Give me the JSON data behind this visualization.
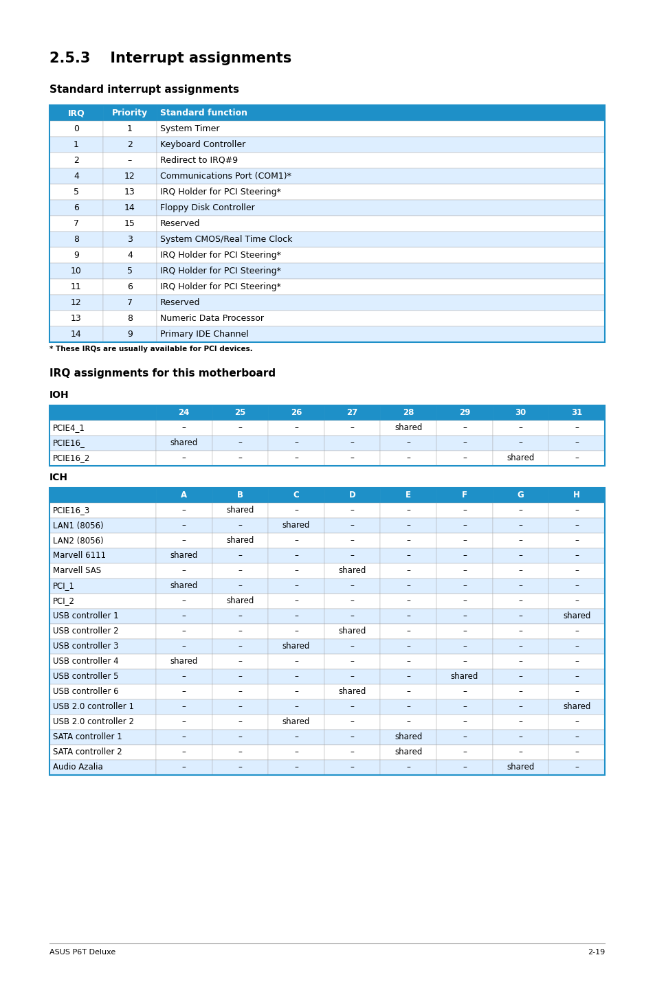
{
  "title_section": "2.5.3    Interrupt assignments",
  "subtitle1": "Standard interrupt assignments",
  "table1_header": [
    "IRQ",
    "Priority",
    "Standard function"
  ],
  "table1_rows": [
    [
      "0",
      "1",
      "System Timer"
    ],
    [
      "1",
      "2",
      "Keyboard Controller"
    ],
    [
      "2",
      "–",
      "Redirect to IRQ#9"
    ],
    [
      "4",
      "12",
      "Communications Port (COM1)*"
    ],
    [
      "5",
      "13",
      "IRQ Holder for PCI Steering*"
    ],
    [
      "6",
      "14",
      "Floppy Disk Controller"
    ],
    [
      "7",
      "15",
      "Reserved"
    ],
    [
      "8",
      "3",
      "System CMOS/Real Time Clock"
    ],
    [
      "9",
      "4",
      "IRQ Holder for PCI Steering*"
    ],
    [
      "10",
      "5",
      "IRQ Holder for PCI Steering*"
    ],
    [
      "11",
      "6",
      "IRQ Holder for PCI Steering*"
    ],
    [
      "12",
      "7",
      "Reserved"
    ],
    [
      "13",
      "8",
      "Numeric Data Processor"
    ],
    [
      "14",
      "9",
      "Primary IDE Channel"
    ]
  ],
  "table1_footnote": "* These IRQs are usually available for PCI devices.",
  "subtitle2": "IRQ assignments for this motherboard",
  "ioh_label": "IOH",
  "ioh_header": [
    "",
    "24",
    "25",
    "26",
    "27",
    "28",
    "29",
    "30",
    "31"
  ],
  "ioh_rows": [
    [
      "PCIE4_1",
      "–",
      "–",
      "–",
      "–",
      "shared",
      "–",
      "–",
      "–"
    ],
    [
      "PCIE16_",
      "shared",
      "–",
      "–",
      "–",
      "–",
      "–",
      "–",
      "–"
    ],
    [
      "PCIE16_2",
      "–",
      "–",
      "–",
      "–",
      "–",
      "–",
      "shared",
      "–"
    ]
  ],
  "ich_label": "ICH",
  "ich_header": [
    "",
    "A",
    "B",
    "C",
    "D",
    "E",
    "F",
    "G",
    "H"
  ],
  "ich_rows": [
    [
      "PCIE16_3",
      "–",
      "shared",
      "–",
      "–",
      "–",
      "–",
      "–",
      "–"
    ],
    [
      "LAN1 (8056)",
      "–",
      "–",
      "shared",
      "–",
      "–",
      "–",
      "–",
      "–"
    ],
    [
      "LAN2 (8056)",
      "–",
      "shared",
      "–",
      "–",
      "–",
      "–",
      "–",
      "–"
    ],
    [
      "Marvell 6111",
      "shared",
      "–",
      "–",
      "–",
      "–",
      "–",
      "–",
      "–"
    ],
    [
      "Marvell SAS",
      "–",
      "–",
      "–",
      "shared",
      "–",
      "–",
      "–",
      "–"
    ],
    [
      "PCI_1",
      "shared",
      "–",
      "–",
      "–",
      "–",
      "–",
      "–",
      "–"
    ],
    [
      "PCI_2",
      "–",
      "shared",
      "–",
      "–",
      "–",
      "–",
      "–",
      "–"
    ],
    [
      "USB controller 1",
      "–",
      "–",
      "–",
      "–",
      "–",
      "–",
      "–",
      "shared"
    ],
    [
      "USB controller 2",
      "–",
      "–",
      "–",
      "shared",
      "–",
      "–",
      "–",
      "–"
    ],
    [
      "USB controller 3",
      "–",
      "–",
      "shared",
      "–",
      "–",
      "–",
      "–",
      "–"
    ],
    [
      "USB controller 4",
      "shared",
      "–",
      "–",
      "–",
      "–",
      "–",
      "–",
      "–"
    ],
    [
      "USB controller 5",
      "–",
      "–",
      "–",
      "–",
      "–",
      "shared",
      "–",
      "–"
    ],
    [
      "USB controller 6",
      "–",
      "–",
      "–",
      "shared",
      "–",
      "–",
      "–",
      "–"
    ],
    [
      "USB 2.0 controller 1",
      "–",
      "–",
      "–",
      "–",
      "–",
      "–",
      "–",
      "shared"
    ],
    [
      "USB 2.0 controller 2",
      "–",
      "–",
      "shared",
      "–",
      "–",
      "–",
      "–",
      "–"
    ],
    [
      "SATA controller 1",
      "–",
      "–",
      "–",
      "–",
      "shared",
      "–",
      "–",
      "–"
    ],
    [
      "SATA controller 2",
      "–",
      "–",
      "–",
      "–",
      "shared",
      "–",
      "–",
      "–"
    ],
    [
      "Audio Azalia",
      "–",
      "–",
      "–",
      "–",
      "–",
      "–",
      "shared",
      "–"
    ]
  ],
  "header_bg": "#1e90c8",
  "header_text": "#ffffff",
  "alt_row_bg": "#ddeeff",
  "white_row_bg": "#ffffff",
  "border_color": "#1e90c8",
  "inner_border_color": "#aaaaaa",
  "text_color": "#000000",
  "footer_left": "ASUS P6T Deluxe",
  "footer_right": "2-19"
}
